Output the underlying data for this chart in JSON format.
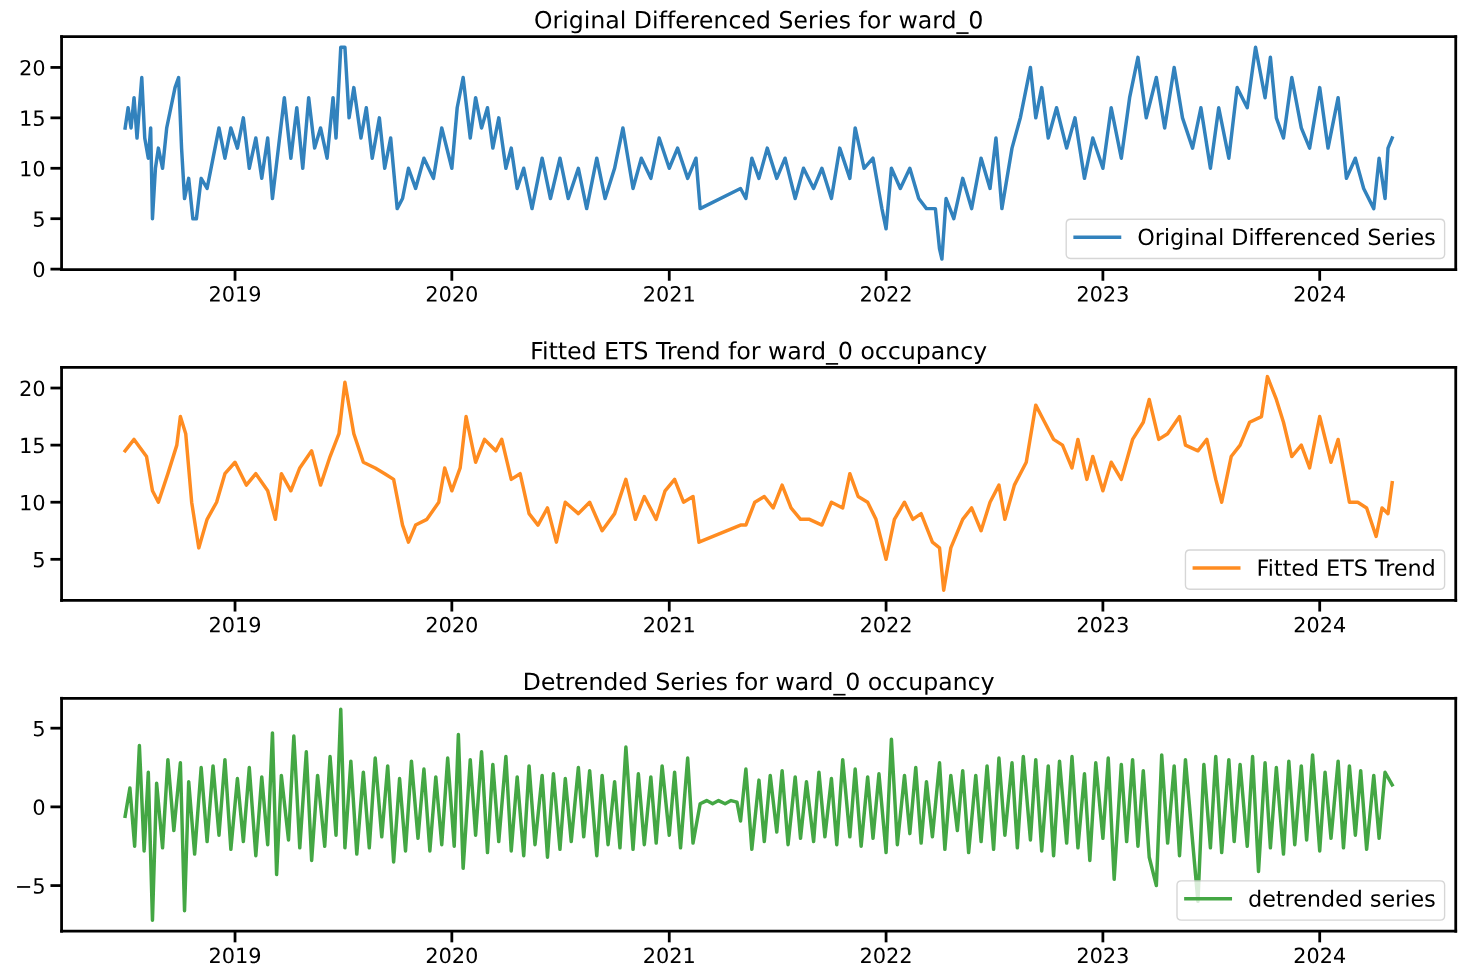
{
  "chart_data": [
    {
      "type": "line",
      "title": "Original Differenced Series for ward_0",
      "legend": "bottom right",
      "grid": false,
      "xlim": [
        "2018-03-15",
        "2024-08-17"
      ],
      "ylim": [
        -0.05,
        23.05
      ],
      "yticks": [
        0,
        5,
        10,
        15,
        20
      ],
      "xticks": [
        {
          "value": "2019-01-01",
          "label": "2019"
        },
        {
          "value": "2020-01-01",
          "label": "2020"
        },
        {
          "value": "2021-01-01",
          "label": "2021"
        },
        {
          "value": "2022-01-01",
          "label": "2022"
        },
        {
          "value": "2023-01-01",
          "label": "2023"
        },
        {
          "value": "2024-01-01",
          "label": "2024"
        }
      ],
      "series": [
        {
          "name": "Original Differenced Series",
          "color": "#3282bd",
          "x": [
            "2018-06-30",
            "2018-07-05",
            "2018-07-10",
            "2018-07-15",
            "2018-07-20",
            "2018-07-28",
            "2018-08-02",
            "2018-08-08",
            "2018-08-12",
            "2018-08-15",
            "2018-08-20",
            "2018-08-25",
            "2018-09-01",
            "2018-09-08",
            "2018-09-15",
            "2018-09-22",
            "2018-09-28",
            "2018-10-03",
            "2018-10-08",
            "2018-10-15",
            "2018-10-22",
            "2018-10-28",
            "2018-11-05",
            "2018-11-15",
            "2018-11-25",
            "2018-12-05",
            "2018-12-15",
            "2018-12-25",
            "2019-01-05",
            "2019-01-15",
            "2019-01-25",
            "2019-02-05",
            "2019-02-15",
            "2019-02-25",
            "2019-03-05",
            "2019-03-15",
            "2019-03-25",
            "2019-04-05",
            "2019-04-15",
            "2019-04-25",
            "2019-05-05",
            "2019-05-15",
            "2019-05-25",
            "2019-06-05",
            "2019-06-15",
            "2019-06-20",
            "2019-06-28",
            "2019-07-05",
            "2019-07-12",
            "2019-07-20",
            "2019-08-01",
            "2019-08-10",
            "2019-08-20",
            "2019-09-01",
            "2019-09-10",
            "2019-09-20",
            "2019-10-01",
            "2019-10-10",
            "2019-10-20",
            "2019-11-01",
            "2019-11-15",
            "2019-12-01",
            "2019-12-15",
            "2020-01-01",
            "2020-01-10",
            "2020-01-20",
            "2020-02-01",
            "2020-02-10",
            "2020-02-20",
            "2020-03-01",
            "2020-03-10",
            "2020-03-20",
            "2020-04-01",
            "2020-04-10",
            "2020-04-20",
            "2020-05-01",
            "2020-05-15",
            "2020-06-01",
            "2020-06-15",
            "2020-07-01",
            "2020-07-15",
            "2020-08-01",
            "2020-08-15",
            "2020-09-01",
            "2020-09-15",
            "2020-10-01",
            "2020-10-15",
            "2020-11-01",
            "2020-11-15",
            "2020-12-01",
            "2020-12-15",
            "2021-01-01",
            "2021-01-15",
            "2021-02-01",
            "2021-02-15",
            "2021-02-22",
            "2021-05-01",
            "2021-05-10",
            "2021-05-20",
            "2021-06-01",
            "2021-06-15",
            "2021-07-01",
            "2021-07-15",
            "2021-08-01",
            "2021-08-15",
            "2021-09-01",
            "2021-09-15",
            "2021-10-01",
            "2021-10-15",
            "2021-11-01",
            "2021-11-10",
            "2021-11-25",
            "2021-12-10",
            "2021-12-25",
            "2022-01-01",
            "2022-01-10",
            "2022-01-25",
            "2022-02-10",
            "2022-02-25",
            "2022-03-10",
            "2022-03-25",
            "2022-04-01",
            "2022-04-05",
            "2022-04-12",
            "2022-04-25",
            "2022-05-10",
            "2022-05-25",
            "2022-06-10",
            "2022-06-25",
            "2022-07-05",
            "2022-07-15",
            "2022-08-01",
            "2022-08-15",
            "2022-09-01",
            "2022-09-10",
            "2022-09-20",
            "2022-10-01",
            "2022-10-15",
            "2022-11-01",
            "2022-11-15",
            "2022-12-01",
            "2022-12-15",
            "2023-01-01",
            "2023-01-15",
            "2023-02-01",
            "2023-02-15",
            "2023-03-01",
            "2023-03-15",
            "2023-04-01",
            "2023-04-15",
            "2023-05-01",
            "2023-05-15",
            "2023-06-01",
            "2023-06-15",
            "2023-07-01",
            "2023-07-15",
            "2023-08-01",
            "2023-08-15",
            "2023-09-01",
            "2023-09-15",
            "2023-10-01",
            "2023-10-10",
            "2023-10-20",
            "2023-11-01",
            "2023-11-15",
            "2023-12-01",
            "2023-12-15",
            "2024-01-01",
            "2024-01-15",
            "2024-02-01",
            "2024-02-15",
            "2024-03-01",
            "2024-03-15",
            "2024-04-01",
            "2024-04-10",
            "2024-04-20",
            "2024-04-25",
            "2024-05-02"
          ],
          "values": [
            14,
            16,
            14,
            17,
            13,
            19,
            13,
            11,
            14,
            5,
            10,
            12,
            10,
            14,
            16,
            18,
            19,
            12,
            7,
            9,
            5,
            5,
            9,
            8,
            11,
            14,
            11,
            14,
            12,
            15,
            10,
            13,
            9,
            13,
            7,
            12,
            17,
            11,
            16,
            10,
            17,
            12,
            14,
            11,
            17,
            13,
            22,
            22,
            15,
            18,
            13,
            16,
            11,
            15,
            10,
            13,
            6,
            7,
            10,
            8,
            11,
            9,
            14,
            10,
            16,
            19,
            13,
            17,
            14,
            16,
            12,
            15,
            10,
            12,
            8,
            10,
            6,
            11,
            7,
            11,
            7,
            10,
            6,
            11,
            7,
            10,
            14,
            8,
            11,
            9,
            13,
            10,
            12,
            9,
            11,
            6,
            8,
            7,
            11,
            9,
            12,
            9,
            11,
            7,
            10,
            8,
            10,
            7,
            12,
            9,
            14,
            10,
            11,
            6,
            4,
            10,
            8,
            10,
            7,
            6,
            6,
            2,
            1,
            7,
            5,
            9,
            6,
            11,
            8,
            13,
            6,
            12,
            15,
            20,
            15,
            18,
            13,
            16,
            12,
            15,
            9,
            13,
            10,
            16,
            11,
            17,
            21,
            15,
            19,
            14,
            20,
            15,
            12,
            16,
            10,
            16,
            11,
            18,
            16,
            22,
            17,
            21,
            15,
            13,
            19,
            14,
            12,
            18,
            12,
            17,
            9,
            11,
            8,
            6,
            11,
            7,
            12,
            13
          ]
        }
      ]
    },
    {
      "type": "line",
      "title": "Fitted ETS Trend for ward_0 occupancy",
      "legend": "bottom right",
      "grid": false,
      "xlim": [
        "2018-03-15",
        "2024-08-17"
      ],
      "ylim": [
        1.4,
        21.8
      ],
      "yticks": [
        5,
        10,
        15,
        20
      ],
      "xticks": [
        {
          "value": "2019-01-01",
          "label": "2019"
        },
        {
          "value": "2020-01-01",
          "label": "2020"
        },
        {
          "value": "2021-01-01",
          "label": "2021"
        },
        {
          "value": "2022-01-01",
          "label": "2022"
        },
        {
          "value": "2023-01-01",
          "label": "2023"
        },
        {
          "value": "2024-01-01",
          "label": "2024"
        }
      ],
      "series": [
        {
          "name": "Fitted ETS Trend",
          "color": "#ff8c21",
          "x": [
            "2018-06-30",
            "2018-07-15",
            "2018-08-05",
            "2018-08-15",
            "2018-08-25",
            "2018-09-10",
            "2018-09-25",
            "2018-10-01",
            "2018-10-10",
            "2018-10-20",
            "2018-11-01",
            "2018-11-15",
            "2018-12-01",
            "2018-12-15",
            "2019-01-01",
            "2019-01-20",
            "2019-02-05",
            "2019-02-25",
            "2019-03-10",
            "2019-03-20",
            "2019-04-05",
            "2019-04-20",
            "2019-05-10",
            "2019-05-25",
            "2019-06-10",
            "2019-06-25",
            "2019-07-05",
            "2019-07-20",
            "2019-08-05",
            "2019-08-25",
            "2019-09-10",
            "2019-09-25",
            "2019-10-10",
            "2019-10-20",
            "2019-11-01",
            "2019-11-20",
            "2019-12-10",
            "2019-12-20",
            "2020-01-01",
            "2020-01-15",
            "2020-01-25",
            "2020-02-10",
            "2020-02-25",
            "2020-03-15",
            "2020-03-25",
            "2020-04-10",
            "2020-04-25",
            "2020-05-10",
            "2020-05-25",
            "2020-06-10",
            "2020-06-25",
            "2020-07-10",
            "2020-08-01",
            "2020-08-20",
            "2020-09-10",
            "2020-10-01",
            "2020-10-20",
            "2020-11-05",
            "2020-11-20",
            "2020-12-10",
            "2020-12-25",
            "2021-01-10",
            "2021-01-25",
            "2021-02-10",
            "2021-02-20",
            "2021-05-01",
            "2021-05-10",
            "2021-05-25",
            "2021-06-10",
            "2021-06-25",
            "2021-07-10",
            "2021-07-25",
            "2021-08-10",
            "2021-08-25",
            "2021-09-15",
            "2021-10-01",
            "2021-10-20",
            "2021-11-01",
            "2021-11-15",
            "2021-12-01",
            "2021-12-15",
            "2022-01-01",
            "2022-01-15",
            "2022-02-01",
            "2022-02-15",
            "2022-03-01",
            "2022-03-20",
            "2022-04-01",
            "2022-04-08",
            "2022-04-20",
            "2022-05-10",
            "2022-05-25",
            "2022-06-10",
            "2022-06-25",
            "2022-07-10",
            "2022-07-20",
            "2022-08-05",
            "2022-08-25",
            "2022-09-10",
            "2022-09-25",
            "2022-10-10",
            "2022-10-25",
            "2022-11-10",
            "2022-11-20",
            "2022-12-05",
            "2022-12-15",
            "2023-01-01",
            "2023-01-15",
            "2023-02-01",
            "2023-02-20",
            "2023-03-10",
            "2023-03-20",
            "2023-04-05",
            "2023-04-20",
            "2023-05-10",
            "2023-05-20",
            "2023-06-10",
            "2023-06-25",
            "2023-07-10",
            "2023-07-20",
            "2023-08-05",
            "2023-08-20",
            "2023-09-05",
            "2023-09-25",
            "2023-10-05",
            "2023-10-20",
            "2023-11-01",
            "2023-11-15",
            "2023-12-01",
            "2023-12-15",
            "2024-01-01",
            "2024-01-20",
            "2024-02-01",
            "2024-02-20",
            "2024-03-05",
            "2024-03-20",
            "2024-04-05",
            "2024-04-15",
            "2024-04-25",
            "2024-05-02"
          ],
          "values": [
            14.5,
            15.5,
            14,
            11,
            10,
            12.5,
            15,
            17.5,
            16,
            10,
            6,
            8.5,
            10,
            12.5,
            13.5,
            11.5,
            12.5,
            11,
            8.5,
            12.5,
            11,
            13,
            14.5,
            11.5,
            14,
            16,
            20.5,
            16,
            13.5,
            13,
            12.5,
            12,
            8,
            6.5,
            8,
            8.5,
            10,
            13,
            11,
            13,
            17.5,
            13.5,
            15.5,
            14.5,
            15.5,
            12,
            12.5,
            9,
            8,
            9.5,
            6.5,
            10,
            9,
            10,
            7.5,
            9,
            12,
            8.5,
            10.5,
            8.5,
            11,
            12,
            10,
            10.5,
            6.5,
            8,
            8,
            10,
            10.5,
            9.5,
            11.5,
            9.5,
            8.5,
            8.5,
            8,
            10,
            9.5,
            12.5,
            10.5,
            10,
            8.5,
            5,
            8.5,
            10,
            8.5,
            9,
            6.5,
            6,
            2.3,
            6,
            8.5,
            9.5,
            7.5,
            10,
            11.5,
            8.5,
            11.5,
            13.5,
            18.5,
            17,
            15.5,
            15,
            13,
            15.5,
            12,
            14,
            11,
            13.5,
            12,
            15.5,
            17,
            19,
            15.5,
            16,
            17.5,
            15,
            14.5,
            15.5,
            12,
            10,
            14,
            15,
            17,
            17.5,
            21,
            19,
            17,
            14,
            15,
            13,
            17.5,
            13.5,
            15.5,
            10,
            10,
            9.5,
            7,
            9.5,
            9,
            11.7
          ]
        }
      ]
    },
    {
      "type": "line",
      "title": "Detrended Series for ward_0 occupancy",
      "legend": "bottom right",
      "grid": false,
      "xlim": [
        "2018-03-15",
        "2024-08-17"
      ],
      "ylim": [
        -7.9,
        6.9
      ],
      "yticks": [
        {
          "value": -5,
          "label": "−5"
        },
        0,
        5
      ],
      "xticks": [
        {
          "value": "2019-01-01",
          "label": "2019"
        },
        {
          "value": "2020-01-01",
          "label": "2020"
        },
        {
          "value": "2021-01-01",
          "label": "2021"
        },
        {
          "value": "2022-01-01",
          "label": "2022"
        },
        {
          "value": "2023-01-01",
          "label": "2023"
        },
        {
          "value": "2024-01-01",
          "label": "2024"
        }
      ],
      "series": [
        {
          "name": "detrended series",
          "color": "#44a744",
          "x": [
            "2018-06-30",
            "2018-07-08",
            "2018-07-16",
            "2018-07-24",
            "2018-08-01",
            "2018-08-08",
            "2018-08-15",
            "2018-08-22",
            "2018-09-01",
            "2018-09-10",
            "2018-09-20",
            "2018-10-01",
            "2018-10-08",
            "2018-10-15",
            "2018-10-25",
            "2018-11-05",
            "2018-11-15",
            "2018-11-25",
            "2018-12-05",
            "2018-12-15",
            "2018-12-25",
            "2019-01-05",
            "2019-01-15",
            "2019-01-25",
            "2019-02-05",
            "2019-02-15",
            "2019-02-25",
            "2019-03-05",
            "2019-03-12",
            "2019-03-20",
            "2019-04-01",
            "2019-04-10",
            "2019-04-20",
            "2019-05-01",
            "2019-05-10",
            "2019-05-20",
            "2019-06-01",
            "2019-06-10",
            "2019-06-20",
            "2019-06-28",
            "2019-07-05",
            "2019-07-15",
            "2019-07-25",
            "2019-08-05",
            "2019-08-15",
            "2019-08-25",
            "2019-09-05",
            "2019-09-15",
            "2019-09-25",
            "2019-10-05",
            "2019-10-15",
            "2019-10-25",
            "2019-11-05",
            "2019-11-15",
            "2019-11-25",
            "2019-12-05",
            "2019-12-15",
            "2019-12-25",
            "2020-01-05",
            "2020-01-12",
            "2020-01-20",
            "2020-02-01",
            "2020-02-10",
            "2020-02-20",
            "2020-03-01",
            "2020-03-10",
            "2020-03-20",
            "2020-04-01",
            "2020-04-10",
            "2020-04-20",
            "2020-05-01",
            "2020-05-10",
            "2020-05-20",
            "2020-06-01",
            "2020-06-10",
            "2020-06-20",
            "2020-07-01",
            "2020-07-10",
            "2020-07-20",
            "2020-08-01",
            "2020-08-10",
            "2020-08-20",
            "2020-09-01",
            "2020-09-10",
            "2020-09-20",
            "2020-10-01",
            "2020-10-10",
            "2020-10-20",
            "2020-11-01",
            "2020-11-10",
            "2020-11-20",
            "2020-12-01",
            "2020-12-10",
            "2020-12-20",
            "2021-01-01",
            "2021-01-10",
            "2021-01-20",
            "2021-02-01",
            "2021-02-10",
            "2021-02-22",
            "2021-03-05",
            "2021-03-15",
            "2021-03-25",
            "2021-04-05",
            "2021-04-15",
            "2021-04-25",
            "2021-05-01",
            "2021-05-10",
            "2021-05-20",
            "2021-06-01",
            "2021-06-10",
            "2021-06-20",
            "2021-07-01",
            "2021-07-10",
            "2021-07-20",
            "2021-08-01",
            "2021-08-10",
            "2021-08-20",
            "2021-09-01",
            "2021-09-10",
            "2021-09-20",
            "2021-10-01",
            "2021-10-10",
            "2021-10-20",
            "2021-11-01",
            "2021-11-10",
            "2021-11-20",
            "2021-12-01",
            "2021-12-10",
            "2021-12-20",
            "2022-01-01",
            "2022-01-10",
            "2022-01-20",
            "2022-02-01",
            "2022-02-10",
            "2022-02-20",
            "2022-03-01",
            "2022-03-10",
            "2022-03-20",
            "2022-04-01",
            "2022-04-10",
            "2022-04-20",
            "2022-05-01",
            "2022-05-10",
            "2022-05-20",
            "2022-06-01",
            "2022-06-10",
            "2022-06-20",
            "2022-07-01",
            "2022-07-10",
            "2022-07-20",
            "2022-08-01",
            "2022-08-10",
            "2022-08-20",
            "2022-09-01",
            "2022-09-10",
            "2022-09-20",
            "2022-10-01",
            "2022-10-10",
            "2022-10-20",
            "2022-11-01",
            "2022-11-10",
            "2022-11-20",
            "2022-12-01",
            "2022-12-10",
            "2022-12-20",
            "2023-01-01",
            "2023-01-10",
            "2023-01-20",
            "2023-02-01",
            "2023-02-10",
            "2023-02-20",
            "2023-03-01",
            "2023-03-10",
            "2023-03-20",
            "2023-04-01",
            "2023-04-10",
            "2023-04-20",
            "2023-05-01",
            "2023-05-10",
            "2023-05-20",
            "2023-06-01",
            "2023-06-10",
            "2023-06-20",
            "2023-07-01",
            "2023-07-10",
            "2023-07-20",
            "2023-08-01",
            "2023-08-10",
            "2023-08-20",
            "2023-09-01",
            "2023-09-10",
            "2023-09-20",
            "2023-10-01",
            "2023-10-10",
            "2023-10-20",
            "2023-11-01",
            "2023-11-10",
            "2023-11-20",
            "2023-12-01",
            "2023-12-10",
            "2023-12-20",
            "2024-01-01",
            "2024-01-10",
            "2024-01-20",
            "2024-02-01",
            "2024-02-10",
            "2024-02-20",
            "2024-03-01",
            "2024-03-10",
            "2024-03-20",
            "2024-04-01",
            "2024-04-10",
            "2024-04-20",
            "2024-05-02"
          ],
          "values": [
            -0.6,
            1.2,
            -2.5,
            3.9,
            -2.8,
            2.2,
            -7.2,
            1.5,
            -2.6,
            3.0,
            -1.5,
            2.8,
            -6.6,
            1.6,
            -3.0,
            2.5,
            -2.2,
            2.6,
            -1.8,
            3.0,
            -2.7,
            1.8,
            -2.2,
            2.5,
            -3.1,
            1.9,
            -2.4,
            4.7,
            -4.3,
            2.0,
            -2.1,
            4.5,
            -2.6,
            3.5,
            -3.4,
            2.0,
            -2.5,
            3.2,
            -1.8,
            6.2,
            -2.6,
            2.9,
            -3.0,
            2.2,
            -2.6,
            3.1,
            -1.9,
            2.6,
            -3.5,
            1.8,
            -2.8,
            2.9,
            -2.0,
            2.4,
            -2.8,
            1.9,
            -2.4,
            3.1,
            -2.5,
            4.6,
            -3.9,
            3.0,
            -1.8,
            3.5,
            -2.9,
            2.7,
            -2.2,
            3.2,
            -2.8,
            1.9,
            -3.1,
            2.6,
            -2.4,
            2.0,
            -3.2,
            2.1,
            -2.7,
            1.8,
            -2.2,
            2.5,
            -1.9,
            2.3,
            -3.1,
            2.0,
            -2.4,
            1.6,
            -2.6,
            3.8,
            -2.7,
            2.1,
            -2.4,
            1.9,
            -2.3,
            2.6,
            -1.8,
            2.2,
            -2.6,
            3.1,
            -2.3,
            0.2,
            0.4,
            0.2,
            0.4,
            0.2,
            0.4,
            0.3,
            -0.9,
            2.4,
            -2.7,
            1.7,
            -2.2,
            2.0,
            -1.6,
            2.3,
            -2.4,
            1.9,
            -2.0,
            1.6,
            -2.2,
            2.2,
            -1.9,
            1.8,
            -2.4,
            3.0,
            -1.9,
            2.4,
            -2.5,
            1.9,
            -2.0,
            2.1,
            -2.9,
            4.3,
            -2.4,
            2.0,
            -1.7,
            2.5,
            -2.3,
            1.6,
            -1.9,
            2.8,
            -2.7,
            2.0,
            -1.5,
            2.3,
            -2.9,
            2.0,
            -2.2,
            2.6,
            -2.7,
            3.1,
            -1.8,
            2.8,
            -2.6,
            3.2,
            -2.1,
            3.0,
            -2.8,
            2.6,
            -3.1,
            2.9,
            -2.3,
            3.2,
            -2.6,
            2.1,
            -3.4,
            2.8,
            -2.0,
            3.1,
            -4.6,
            2.7,
            -2.2,
            3.0,
            -2.5,
            2.3,
            -3.2,
            -5.0,
            3.3,
            -2.3,
            2.6,
            -3.1,
            3.0,
            -2.2,
            -6.0,
            2.7,
            -2.6,
            3.2,
            -2.9,
            3.0,
            -2.2,
            2.7,
            -2.5,
            3.2,
            -4.1,
            2.8,
            -2.6,
            2.5,
            -3.0,
            2.9,
            -2.4,
            2.6,
            -2.1,
            3.3,
            -2.8,
            2.2,
            -2.0,
            2.9,
            -2.6,
            2.6,
            -1.8,
            2.3,
            -2.7,
            2.0,
            -2.0,
            2.2,
            1.4
          ]
        }
      ]
    }
  ]
}
